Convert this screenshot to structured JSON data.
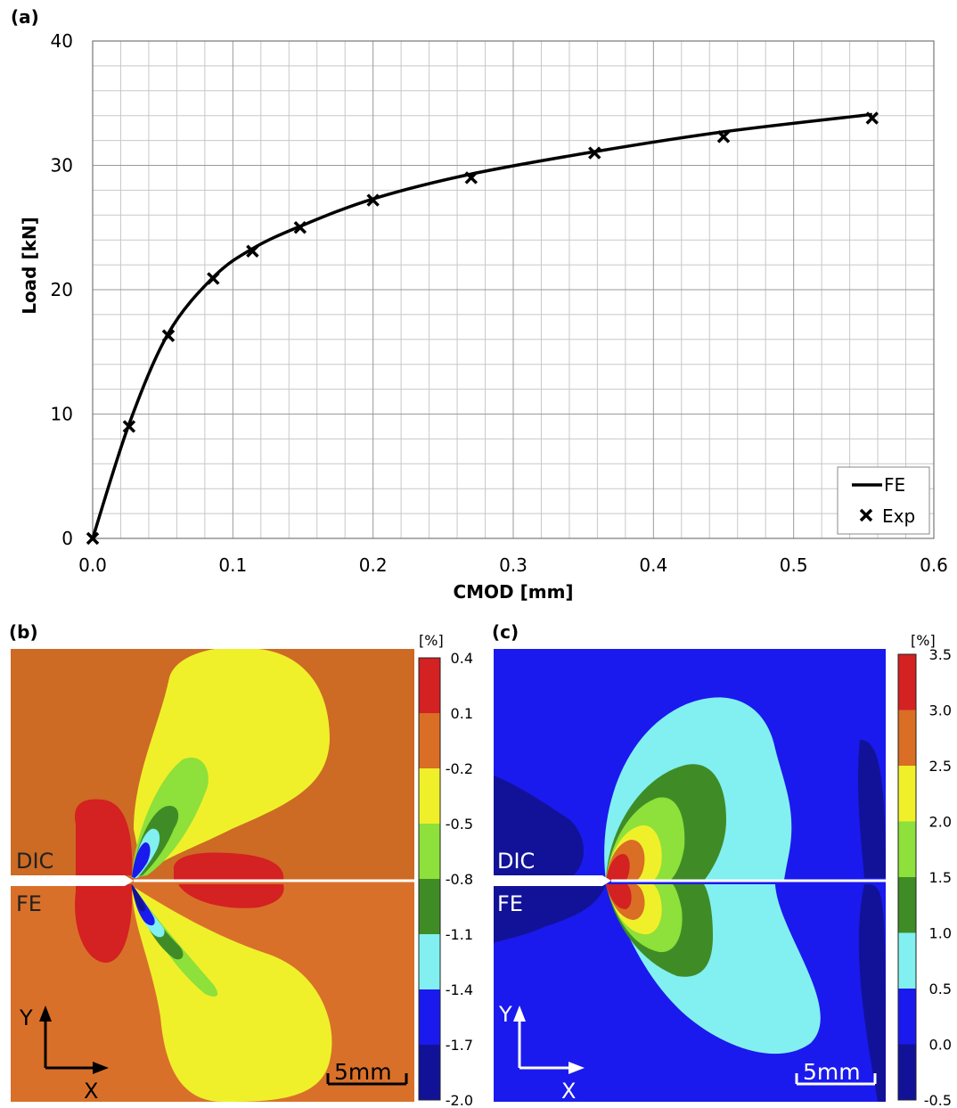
{
  "panels": {
    "a": "(a)",
    "b": "(b)",
    "c": "(c)"
  },
  "chart_data": {
    "type": "line",
    "xlabel": "CMOD [mm]",
    "ylabel": "Load [kN]",
    "xlim": [
      0,
      0.6
    ],
    "ylim": [
      0,
      40
    ],
    "xticks": [
      "0.0",
      "0.1",
      "0.2",
      "0.3",
      "0.4",
      "0.5",
      "0.6"
    ],
    "yticks": [
      "0",
      "10",
      "20",
      "30",
      "40"
    ],
    "grid": true,
    "legend_position": "bottom-right",
    "series": [
      {
        "name": "FE",
        "style": "line",
        "color": "#000000",
        "x": [
          0.0,
          0.026,
          0.054,
          0.086,
          0.114,
          0.148,
          0.2,
          0.27,
          0.358,
          0.45,
          0.556
        ],
        "y": [
          0.0,
          9.2,
          16.5,
          21.0,
          23.3,
          25.1,
          27.3,
          29.3,
          31.1,
          32.7,
          34.1
        ]
      },
      {
        "name": "Exp",
        "style": "marker-x",
        "color": "#000000",
        "x": [
          0.0,
          0.026,
          0.054,
          0.086,
          0.114,
          0.148,
          0.2,
          0.27,
          0.358,
          0.45,
          0.556
        ],
        "y": [
          0.0,
          9.0,
          16.3,
          20.9,
          23.1,
          25.0,
          27.2,
          29.0,
          31.0,
          32.3,
          33.8
        ]
      }
    ]
  },
  "map_b": {
    "unit": "[%]",
    "levels": [
      "0.4",
      "0.1",
      "-0.2",
      "-0.5",
      "-0.8",
      "-1.1",
      "-1.4",
      "-1.7",
      "-2.0"
    ],
    "colors": [
      "#d42121",
      "#d96e24",
      "#f0f02a",
      "#8ee03a",
      "#3f8c27",
      "#82f0f0",
      "#1a1aee",
      "#121299"
    ],
    "label_top": "DIC",
    "label_bottom": "FE",
    "axis_y": "Y",
    "axis_x": "X",
    "scale": "5mm"
  },
  "map_c": {
    "unit": "[%]",
    "levels": [
      "3.5",
      "3.0",
      "2.5",
      "2.0",
      "1.5",
      "1.0",
      "0.5",
      "0.0",
      "-0.5"
    ],
    "colors": [
      "#d42121",
      "#d96e24",
      "#f0f02a",
      "#8ee03a",
      "#3f8c27",
      "#82f0f0",
      "#1a1aee",
      "#121299"
    ],
    "label_top": "DIC",
    "label_bottom": "FE",
    "axis_y": "Y",
    "axis_x": "X",
    "scale": "5mm"
  }
}
